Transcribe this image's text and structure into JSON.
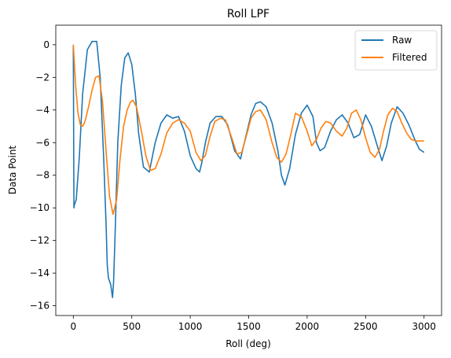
{
  "chart_data": {
    "type": "line",
    "title": "Roll LPF",
    "xlabel": "Roll (deg)",
    "ylabel": "Data Point",
    "xlim": [
      -150,
      3150
    ],
    "ylim": [
      -16.6,
      1.2
    ],
    "xticks": [
      0,
      500,
      1000,
      1500,
      2000,
      2500,
      3000
    ],
    "yticks": [
      0,
      -2,
      -4,
      -6,
      -8,
      -10,
      -12,
      -14,
      -16
    ],
    "grid": false,
    "legend_position": "top-right",
    "series": [
      {
        "name": "Raw",
        "color": "#1f77b4",
        "x": [
          0,
          5,
          10,
          25,
          50,
          80,
          120,
          160,
          200,
          230,
          260,
          280,
          290,
          300,
          320,
          335,
          345,
          360,
          380,
          410,
          440,
          470,
          500,
          530,
          560,
          600,
          650,
          700,
          750,
          800,
          850,
          900,
          950,
          1000,
          1050,
          1080,
          1100,
          1130,
          1170,
          1220,
          1270,
          1320,
          1380,
          1430,
          1480,
          1520,
          1560,
          1600,
          1650,
          1700,
          1750,
          1780,
          1810,
          1850,
          1900,
          1950,
          2000,
          2050,
          2080,
          2110,
          2150,
          2200,
          2250,
          2300,
          2350,
          2400,
          2450,
          2500,
          2550,
          2600,
          2640,
          2680,
          2720,
          2770,
          2820,
          2870,
          2920,
          2960,
          3000
        ],
        "values": [
          0,
          -10,
          -9.8,
          -9.5,
          -7,
          -3,
          -0.3,
          0.2,
          0.2,
          -2,
          -7,
          -11,
          -13.5,
          -14.3,
          -14.7,
          -15.5,
          -14.5,
          -11,
          -6,
          -2.5,
          -0.8,
          -0.5,
          -1.2,
          -3,
          -5.5,
          -7.5,
          -7.8,
          -6,
          -4.8,
          -4.3,
          -4.5,
          -4.4,
          -5.3,
          -6.8,
          -7.6,
          -7.8,
          -7.2,
          -6,
          -4.8,
          -4.4,
          -4.4,
          -4.9,
          -6.5,
          -7,
          -5.5,
          -4.3,
          -3.6,
          -3.5,
          -3.8,
          -4.8,
          -6.5,
          -8,
          -8.6,
          -7.6,
          -5.5,
          -4.2,
          -3.7,
          -4.4,
          -6,
          -6.5,
          -6.3,
          -5.3,
          -4.6,
          -4.3,
          -4.8,
          -5.7,
          -5.5,
          -4.3,
          -5,
          -6.2,
          -7.1,
          -6.2,
          -4.8,
          -3.8,
          -4.2,
          -4.9,
          -5.8,
          -6.4,
          -6.6
        ]
      },
      {
        "name": "Filtered",
        "color": "#ff7f0e",
        "x": [
          0,
          20,
          40,
          60,
          80,
          100,
          130,
          160,
          190,
          220,
          250,
          280,
          310,
          340,
          370,
          400,
          430,
          460,
          490,
          510,
          540,
          580,
          620,
          660,
          700,
          750,
          800,
          850,
          900,
          950,
          1000,
          1050,
          1090,
          1130,
          1170,
          1210,
          1260,
          1300,
          1350,
          1400,
          1440,
          1480,
          1520,
          1560,
          1600,
          1650,
          1700,
          1740,
          1780,
          1820,
          1860,
          1900,
          1950,
          2000,
          2040,
          2080,
          2120,
          2160,
          2200,
          2250,
          2300,
          2340,
          2380,
          2420,
          2460,
          2500,
          2540,
          2580,
          2620,
          2650,
          2690,
          2730,
          2770,
          2810,
          2850,
          2890,
          2930,
          2970,
          3000
        ],
        "values": [
          0,
          -2.5,
          -4.2,
          -4.9,
          -5,
          -4.7,
          -3.8,
          -2.8,
          -2,
          -1.9,
          -3.5,
          -6.5,
          -9.3,
          -10.4,
          -9.5,
          -7,
          -5,
          -4,
          -3.5,
          -3.4,
          -3.8,
          -5.2,
          -6.8,
          -7.7,
          -7.6,
          -6.7,
          -5.4,
          -4.8,
          -4.6,
          -4.8,
          -5.3,
          -6.6,
          -7.1,
          -6.8,
          -5.6,
          -4.7,
          -4.5,
          -4.6,
          -5.6,
          -6.7,
          -6.6,
          -5.6,
          -4.5,
          -4.1,
          -4.0,
          -4.6,
          -6.0,
          -6.9,
          -7.2,
          -6.7,
          -5.5,
          -4.2,
          -4.4,
          -5.3,
          -6.2,
          -5.8,
          -5.1,
          -4.7,
          -4.8,
          -5.3,
          -5.6,
          -5.1,
          -4.2,
          -4.0,
          -4.6,
          -5.7,
          -6.6,
          -6.9,
          -6.4,
          -5.4,
          -4.3,
          -3.9,
          -4.1,
          -4.8,
          -5.4,
          -5.8,
          -5.9,
          -5.9,
          -5.9
        ]
      }
    ]
  }
}
